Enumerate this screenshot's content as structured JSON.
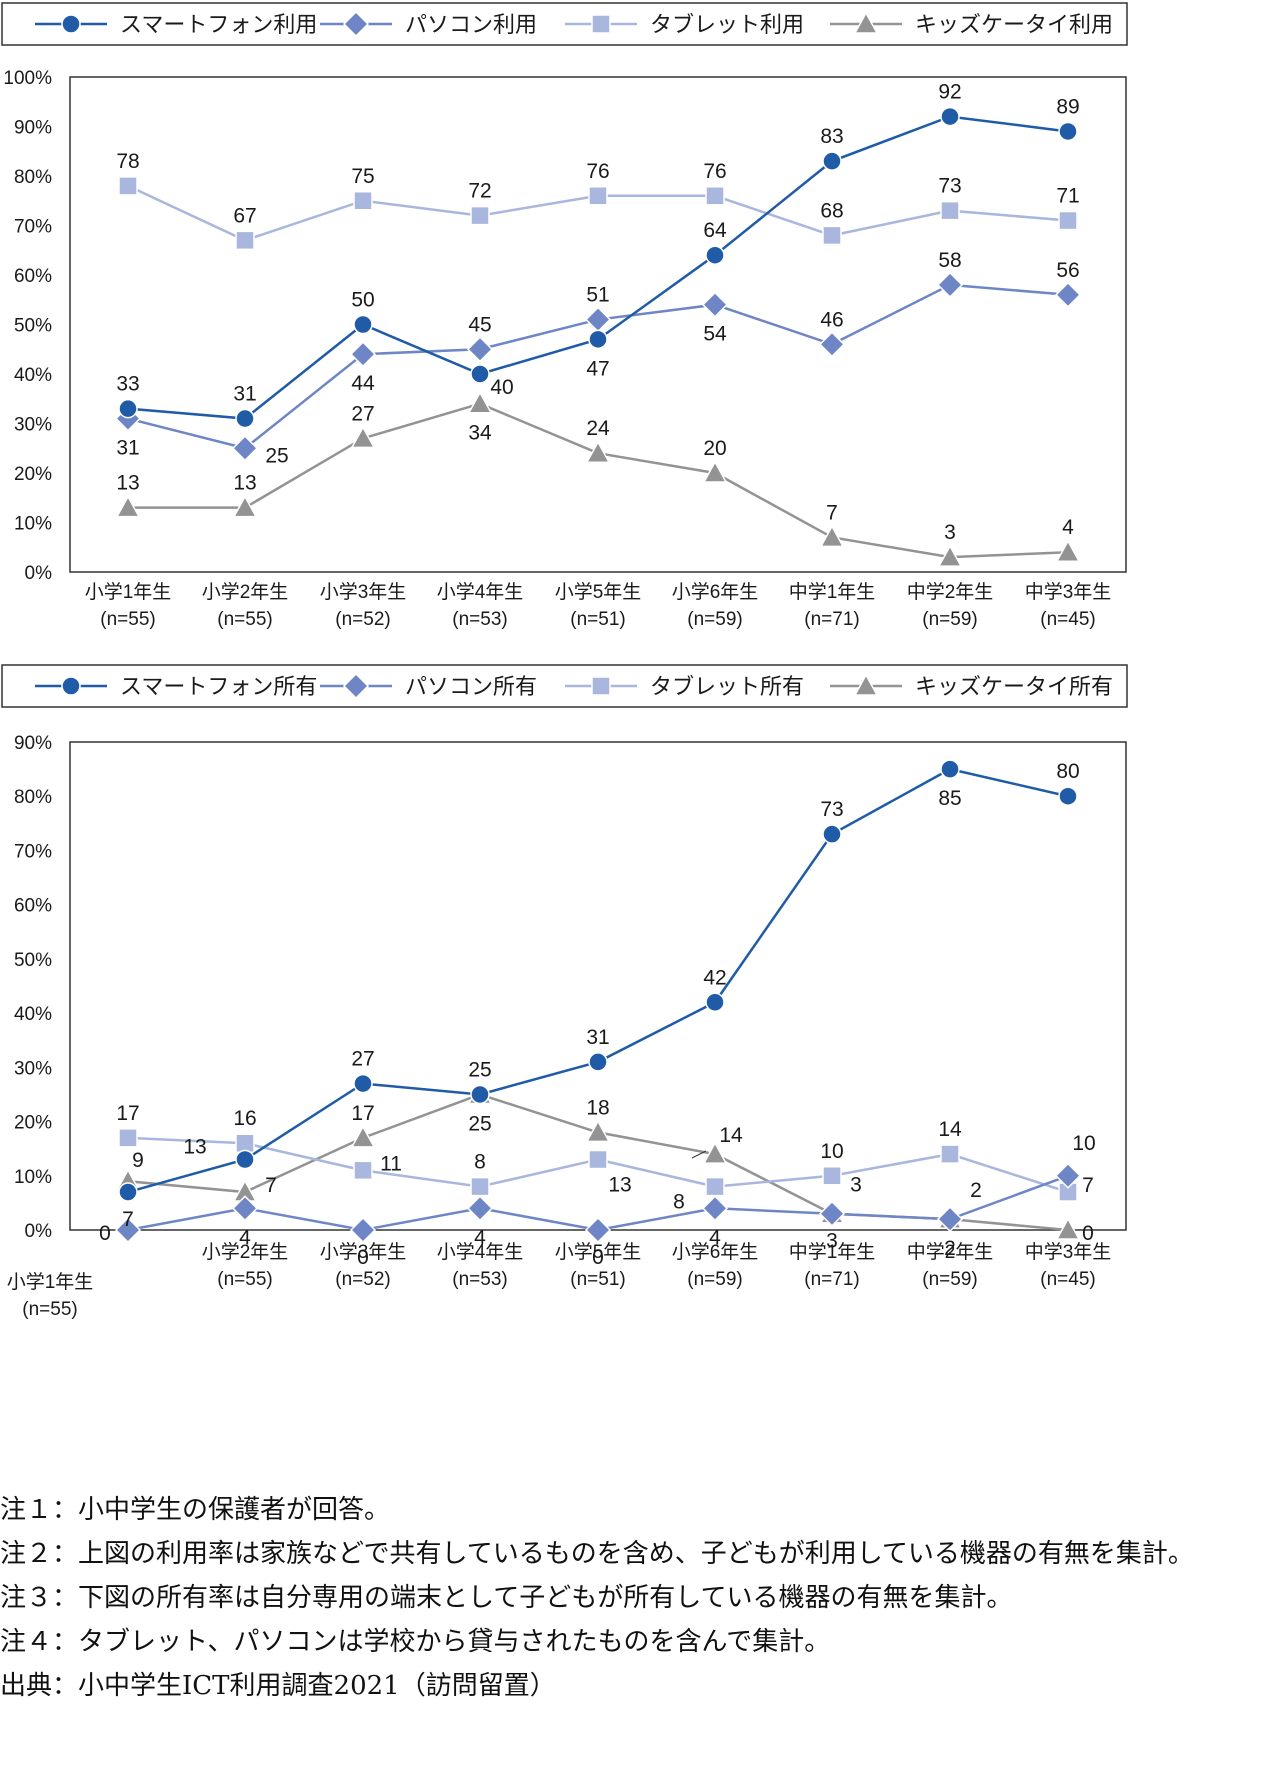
{
  "chart_data": [
    {
      "type": "line",
      "categories": [
        "小学1年生\n(n=55)",
        "小学2年生\n(n=55)",
        "小学3年生\n(n=52)",
        "小学4年生\n(n=53)",
        "小学5年生\n(n=51)",
        "小学6年生\n(n=59)",
        "中学1年生\n(n=71)",
        "中学2年生\n(n=59)",
        "中学3年生\n(n=45)"
      ],
      "ylim": [
        0,
        100
      ],
      "y_ticks": [
        "0%",
        "10%",
        "20%",
        "30%",
        "40%",
        "50%",
        "60%",
        "70%",
        "80%",
        "90%",
        "100%"
      ],
      "legend_position": "top",
      "series": [
        {
          "name": "スマートフォン利用",
          "marker": "circle",
          "color": "#1f5ba6",
          "values": [
            33,
            31,
            50,
            40,
            47,
            64,
            83,
            92,
            89
          ],
          "labels": [
            "33",
            "31",
            "50",
            "40",
            "47",
            "64",
            "83",
            "92",
            "89"
          ]
        },
        {
          "name": "パソコン利用",
          "marker": "diamond",
          "color": "#6f86c6",
          "values": [
            31,
            25,
            44,
            45,
            51,
            54,
            46,
            58,
            56
          ],
          "labels": [
            "31",
            "25",
            "44",
            "45",
            "51",
            "54",
            "46",
            "58",
            "56"
          ]
        },
        {
          "name": "タブレット利用",
          "marker": "square",
          "color": "#a9b6de",
          "values": [
            78,
            67,
            75,
            72,
            76,
            76,
            68,
            73,
            71
          ],
          "labels": [
            "78",
            "67",
            "75",
            "72",
            "76",
            "76",
            "68",
            "73",
            "71"
          ]
        },
        {
          "name": "キッズケータイ利用",
          "marker": "triangle",
          "color": "#939393",
          "values": [
            13,
            13,
            27,
            34,
            24,
            20,
            7,
            3,
            4
          ],
          "labels": [
            "13",
            "13",
            "27",
            "34",
            "24",
            "20",
            "7",
            "3",
            "4"
          ]
        }
      ]
    },
    {
      "type": "line",
      "categories": [
        "小学1年生\n(n=55)",
        "小学2年生\n(n=55)",
        "小学3年生\n(n=52)",
        "小学4年生\n(n=53)",
        "小学5年生\n(n=51)",
        "小学6年生\n(n=59)",
        "中学1年生\n(n=71)",
        "中学2年生\n(n=59)",
        "中学3年生\n(n=45)"
      ],
      "ylim": [
        0,
        90
      ],
      "y_ticks": [
        "0%",
        "10%",
        "20%",
        "30%",
        "40%",
        "50%",
        "60%",
        "70%",
        "80%",
        "90%"
      ],
      "legend_position": "top",
      "series": [
        {
          "name": "スマートフォン所有",
          "marker": "circle",
          "color": "#1f5ba6",
          "values": [
            7,
            13,
            27,
            25,
            31,
            42,
            73,
            85,
            80
          ],
          "labels": [
            "7",
            "13",
            "27",
            "25",
            "31",
            "42",
            "73",
            "85",
            "80"
          ]
        },
        {
          "name": "パソコン所有",
          "marker": "diamond",
          "color": "#6f86c6",
          "values": [
            0,
            4,
            0,
            4,
            0,
            4,
            3,
            2,
            10
          ],
          "labels": [
            "0",
            "4",
            "0",
            "4",
            "0",
            "4",
            "3",
            "2",
            "10"
          ]
        },
        {
          "name": "タブレット所有",
          "marker": "square",
          "color": "#a9b6de",
          "values": [
            17,
            16,
            11,
            8,
            13,
            8,
            10,
            14,
            7
          ],
          "labels": [
            "17",
            "16",
            "11",
            "8",
            "13",
            "8",
            "10",
            "14",
            "7"
          ]
        },
        {
          "name": "キッズケータイ所有",
          "marker": "triangle",
          "color": "#939393",
          "values": [
            9,
            7,
            17,
            25,
            18,
            14,
            3,
            2,
            0
          ],
          "labels": [
            "9",
            "7",
            "17",
            "25",
            "18",
            "14",
            "3",
            "2",
            "0"
          ]
        }
      ]
    }
  ],
  "notes": [
    {
      "prefix": "注１：",
      "text": "小中学生の保護者が回答。"
    },
    {
      "prefix": "注２：",
      "text": "上図の利用率は家族などで共有しているものを含め、子どもが利用している機器の有無を集計。"
    },
    {
      "prefix": "注３：",
      "text": "下図の所有率は自分専用の端末として子どもが所有している機器の有無を集計。"
    },
    {
      "prefix": "注４：",
      "text": "タブレット、パソコンは学校から貸与されたものを含んで集計。"
    },
    {
      "prefix": "出典：",
      "text": "小中学生ICT利用調査2021（訪問留置）"
    }
  ]
}
